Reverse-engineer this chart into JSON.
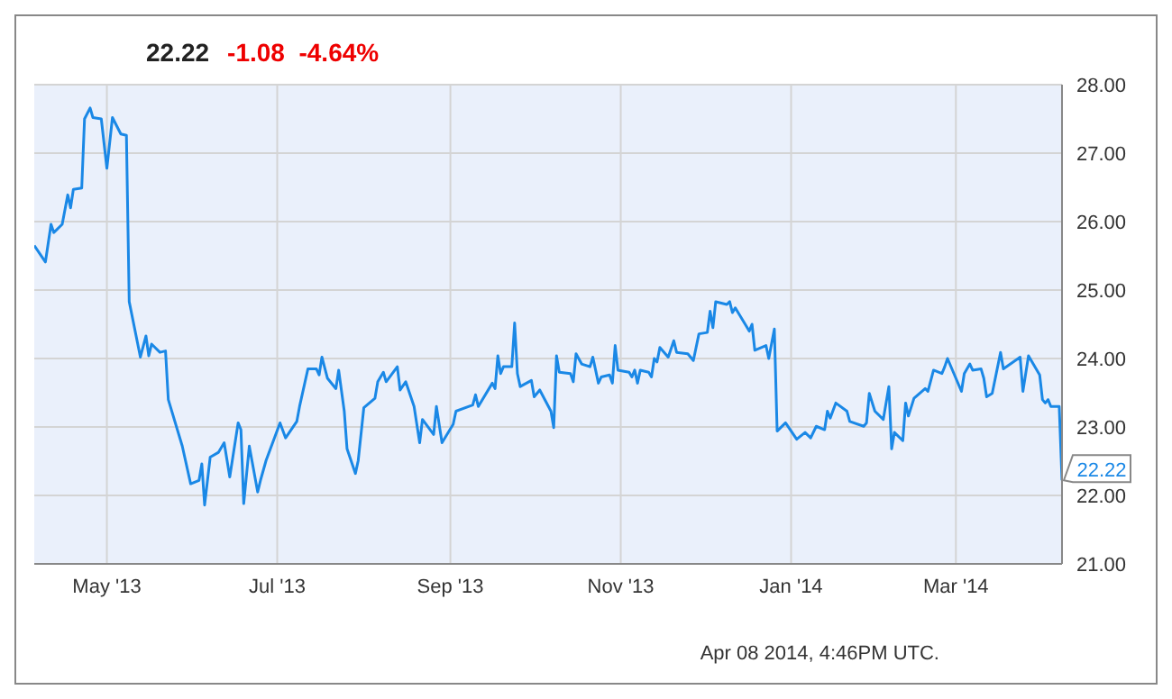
{
  "chart_data": {
    "type": "line",
    "title": "22.22",
    "subtitle": "-1.08  -4.64%",
    "annotations": [
      "Apr 08 2014, 4:46PM UTC.",
      {
        "text": "22.22",
        "x": "2014-04-08",
        "y": 22.22
      }
    ],
    "x": [
      "2013-04-05",
      "2013-04-09",
      "2013-04-11",
      "2013-04-12",
      "2013-04-15",
      "2013-04-17",
      "2013-04-18",
      "2013-04-19",
      "2013-04-22",
      "2013-04-23",
      "2013-04-25",
      "2013-04-26",
      "2013-04-29",
      "2013-05-01",
      "2013-05-03",
      "2013-05-06",
      "2013-05-08",
      "2013-05-09",
      "2013-05-13",
      "2013-05-15",
      "2013-05-16",
      "2013-05-17",
      "2013-05-20",
      "2013-05-22",
      "2013-05-23",
      "2013-05-28",
      "2013-05-31",
      "2013-06-03",
      "2013-06-04",
      "2013-06-05",
      "2013-06-07",
      "2013-06-10",
      "2013-06-12",
      "2013-06-14",
      "2013-06-17",
      "2013-06-18",
      "2013-06-19",
      "2013-06-21",
      "2013-06-24",
      "2013-06-25",
      "2013-06-27",
      "2013-07-02",
      "2013-07-04",
      "2013-07-08",
      "2013-07-09",
      "2013-07-12",
      "2013-07-15",
      "2013-07-16",
      "2013-07-17",
      "2013-07-19",
      "2013-07-22",
      "2013-07-23",
      "2013-07-25",
      "2013-07-26",
      "2013-07-29",
      "2013-07-30",
      "2013-08-01",
      "2013-08-05",
      "2013-08-06",
      "2013-08-08",
      "2013-08-09",
      "2013-08-13",
      "2013-08-14",
      "2013-08-16",
      "2013-08-19",
      "2013-08-21",
      "2013-08-22",
      "2013-08-26",
      "2013-08-27",
      "2013-08-29",
      "2013-09-02",
      "2013-09-03",
      "2013-09-09",
      "2013-09-10",
      "2013-09-11",
      "2013-09-16",
      "2013-09-17",
      "2013-09-18",
      "2013-09-19",
      "2013-09-20",
      "2013-09-23",
      "2013-09-24",
      "2013-09-25",
      "2013-09-26",
      "2013-09-30",
      "2013-10-01",
      "2013-10-03",
      "2013-10-07",
      "2013-10-08",
      "2013-10-09",
      "2013-10-10",
      "2013-10-14",
      "2013-10-15",
      "2013-10-16",
      "2013-10-18",
      "2013-10-21",
      "2013-10-22",
      "2013-10-23",
      "2013-10-24",
      "2013-10-25",
      "2013-10-28",
      "2013-10-29",
      "2013-10-30",
      "2013-10-31",
      "2013-11-04",
      "2013-11-05",
      "2013-11-06",
      "2013-11-07",
      "2013-11-08",
      "2013-11-11",
      "2013-11-12",
      "2013-11-13",
      "2013-11-14",
      "2013-11-15",
      "2013-11-18",
      "2013-11-20",
      "2013-11-21",
      "2013-11-25",
      "2013-11-26",
      "2013-11-27",
      "2013-11-29",
      "2013-12-02",
      "2013-12-03",
      "2013-12-04",
      "2013-12-05",
      "2013-12-09",
      "2013-12-10",
      "2013-12-11",
      "2013-12-12",
      "2013-12-16",
      "2013-12-17",
      "2013-12-18",
      "2013-12-19",
      "2013-12-23",
      "2013-12-24",
      "2013-12-26",
      "2013-12-27",
      "2013-12-30",
      "2014-01-03",
      "2014-01-06",
      "2014-01-08",
      "2014-01-10",
      "2014-01-13",
      "2014-01-14",
      "2014-01-15",
      "2014-01-17",
      "2014-01-21",
      "2014-01-22",
      "2014-01-27",
      "2014-01-28",
      "2014-01-29",
      "2014-01-31",
      "2014-02-03",
      "2014-02-05",
      "2014-02-06",
      "2014-02-07",
      "2014-02-10",
      "2014-02-11",
      "2014-02-12",
      "2014-02-14",
      "2014-02-18",
      "2014-02-19",
      "2014-02-21",
      "2014-02-24",
      "2014-02-25",
      "2014-02-26",
      "2014-03-03",
      "2014-03-04",
      "2014-03-06",
      "2014-03-07",
      "2014-03-10",
      "2014-03-11",
      "2014-03-12",
      "2014-03-14",
      "2014-03-17",
      "2014-03-18",
      "2014-03-24",
      "2014-03-25",
      "2014-03-27",
      "2014-03-31",
      "2014-04-01",
      "2014-04-02",
      "2014-04-03",
      "2014-04-04",
      "2014-04-07",
      "2014-04-08"
    ],
    "values": [
      25.65,
      25.41,
      25.96,
      25.84,
      25.96,
      26.39,
      26.2,
      26.47,
      26.49,
      27.5,
      27.66,
      27.52,
      27.5,
      26.78,
      27.52,
      27.28,
      27.26,
      24.83,
      24.02,
      24.33,
      24.04,
      24.21,
      24.09,
      24.11,
      23.4,
      22.72,
      22.17,
      22.22,
      22.46,
      21.86,
      22.56,
      22.63,
      22.77,
      22.27,
      23.06,
      22.96,
      21.88,
      22.72,
      22.05,
      22.22,
      22.51,
      23.06,
      22.84,
      23.08,
      23.3,
      23.85,
      23.85,
      23.76,
      24.02,
      23.71,
      23.56,
      23.83,
      23.23,
      22.68,
      22.32,
      22.51,
      23.28,
      23.42,
      23.66,
      23.8,
      23.66,
      23.88,
      23.54,
      23.66,
      23.3,
      22.77,
      23.11,
      22.89,
      23.3,
      22.77,
      23.04,
      23.23,
      23.32,
      23.47,
      23.3,
      23.64,
      23.56,
      24.04,
      23.78,
      23.88,
      23.88,
      24.52,
      23.78,
      23.59,
      23.68,
      23.44,
      23.54,
      23.23,
      22.99,
      24.04,
      23.8,
      23.78,
      23.66,
      24.07,
      23.92,
      23.88,
      24.02,
      23.83,
      23.64,
      23.73,
      23.76,
      23.64,
      24.19,
      23.83,
      23.8,
      23.73,
      23.83,
      23.64,
      23.83,
      23.8,
      23.73,
      24.0,
      23.95,
      24.16,
      24.02,
      24.26,
      24.09,
      24.07,
      24.02,
      23.97,
      24.36,
      24.38,
      24.69,
      24.45,
      24.83,
      24.79,
      24.83,
      24.67,
      24.74,
      24.47,
      24.4,
      24.5,
      24.12,
      24.19,
      24.0,
      24.43,
      22.94,
      23.06,
      22.82,
      22.92,
      22.84,
      23.01,
      22.96,
      23.23,
      23.13,
      23.35,
      23.23,
      23.08,
      23.01,
      23.06,
      23.49,
      23.23,
      23.11,
      23.59,
      22.68,
      22.92,
      22.8,
      23.35,
      23.16,
      23.42,
      23.56,
      23.52,
      23.83,
      23.78,
      23.88,
      24.0,
      23.52,
      23.78,
      23.92,
      23.83,
      23.85,
      23.71,
      23.44,
      23.49,
      24.09,
      23.85,
      24.02,
      23.52,
      24.04,
      23.76,
      23.4,
      23.35,
      23.4,
      23.3,
      23.3,
      22.22
    ],
    "color": "#1a88e6",
    "marker": "none",
    "grid": true,
    "xlim": [
      "2013-04-05",
      "2014-04-08"
    ],
    "xticks": [
      {
        "value": "2013-05-01",
        "label": "May '13"
      },
      {
        "value": "2013-07-01",
        "label": "Jul '13"
      },
      {
        "value": "2013-09-01",
        "label": "Sep '13"
      },
      {
        "value": "2013-11-01",
        "label": "Nov '13"
      },
      {
        "value": "2014-01-01",
        "label": "Jan '14"
      },
      {
        "value": "2014-03-01",
        "label": "Mar '14"
      }
    ],
    "ylim": [
      21,
      28
    ],
    "yticks": [
      {
        "value": 21,
        "label": "21.00"
      },
      {
        "value": 22,
        "label": "22.00"
      },
      {
        "value": 23,
        "label": "23.00"
      },
      {
        "value": 24,
        "label": "24.00"
      },
      {
        "value": 25,
        "label": "25.00"
      },
      {
        "value": 26,
        "label": "26.00"
      },
      {
        "value": 27,
        "label": "27.00"
      },
      {
        "value": 28,
        "label": "28.00"
      }
    ]
  }
}
